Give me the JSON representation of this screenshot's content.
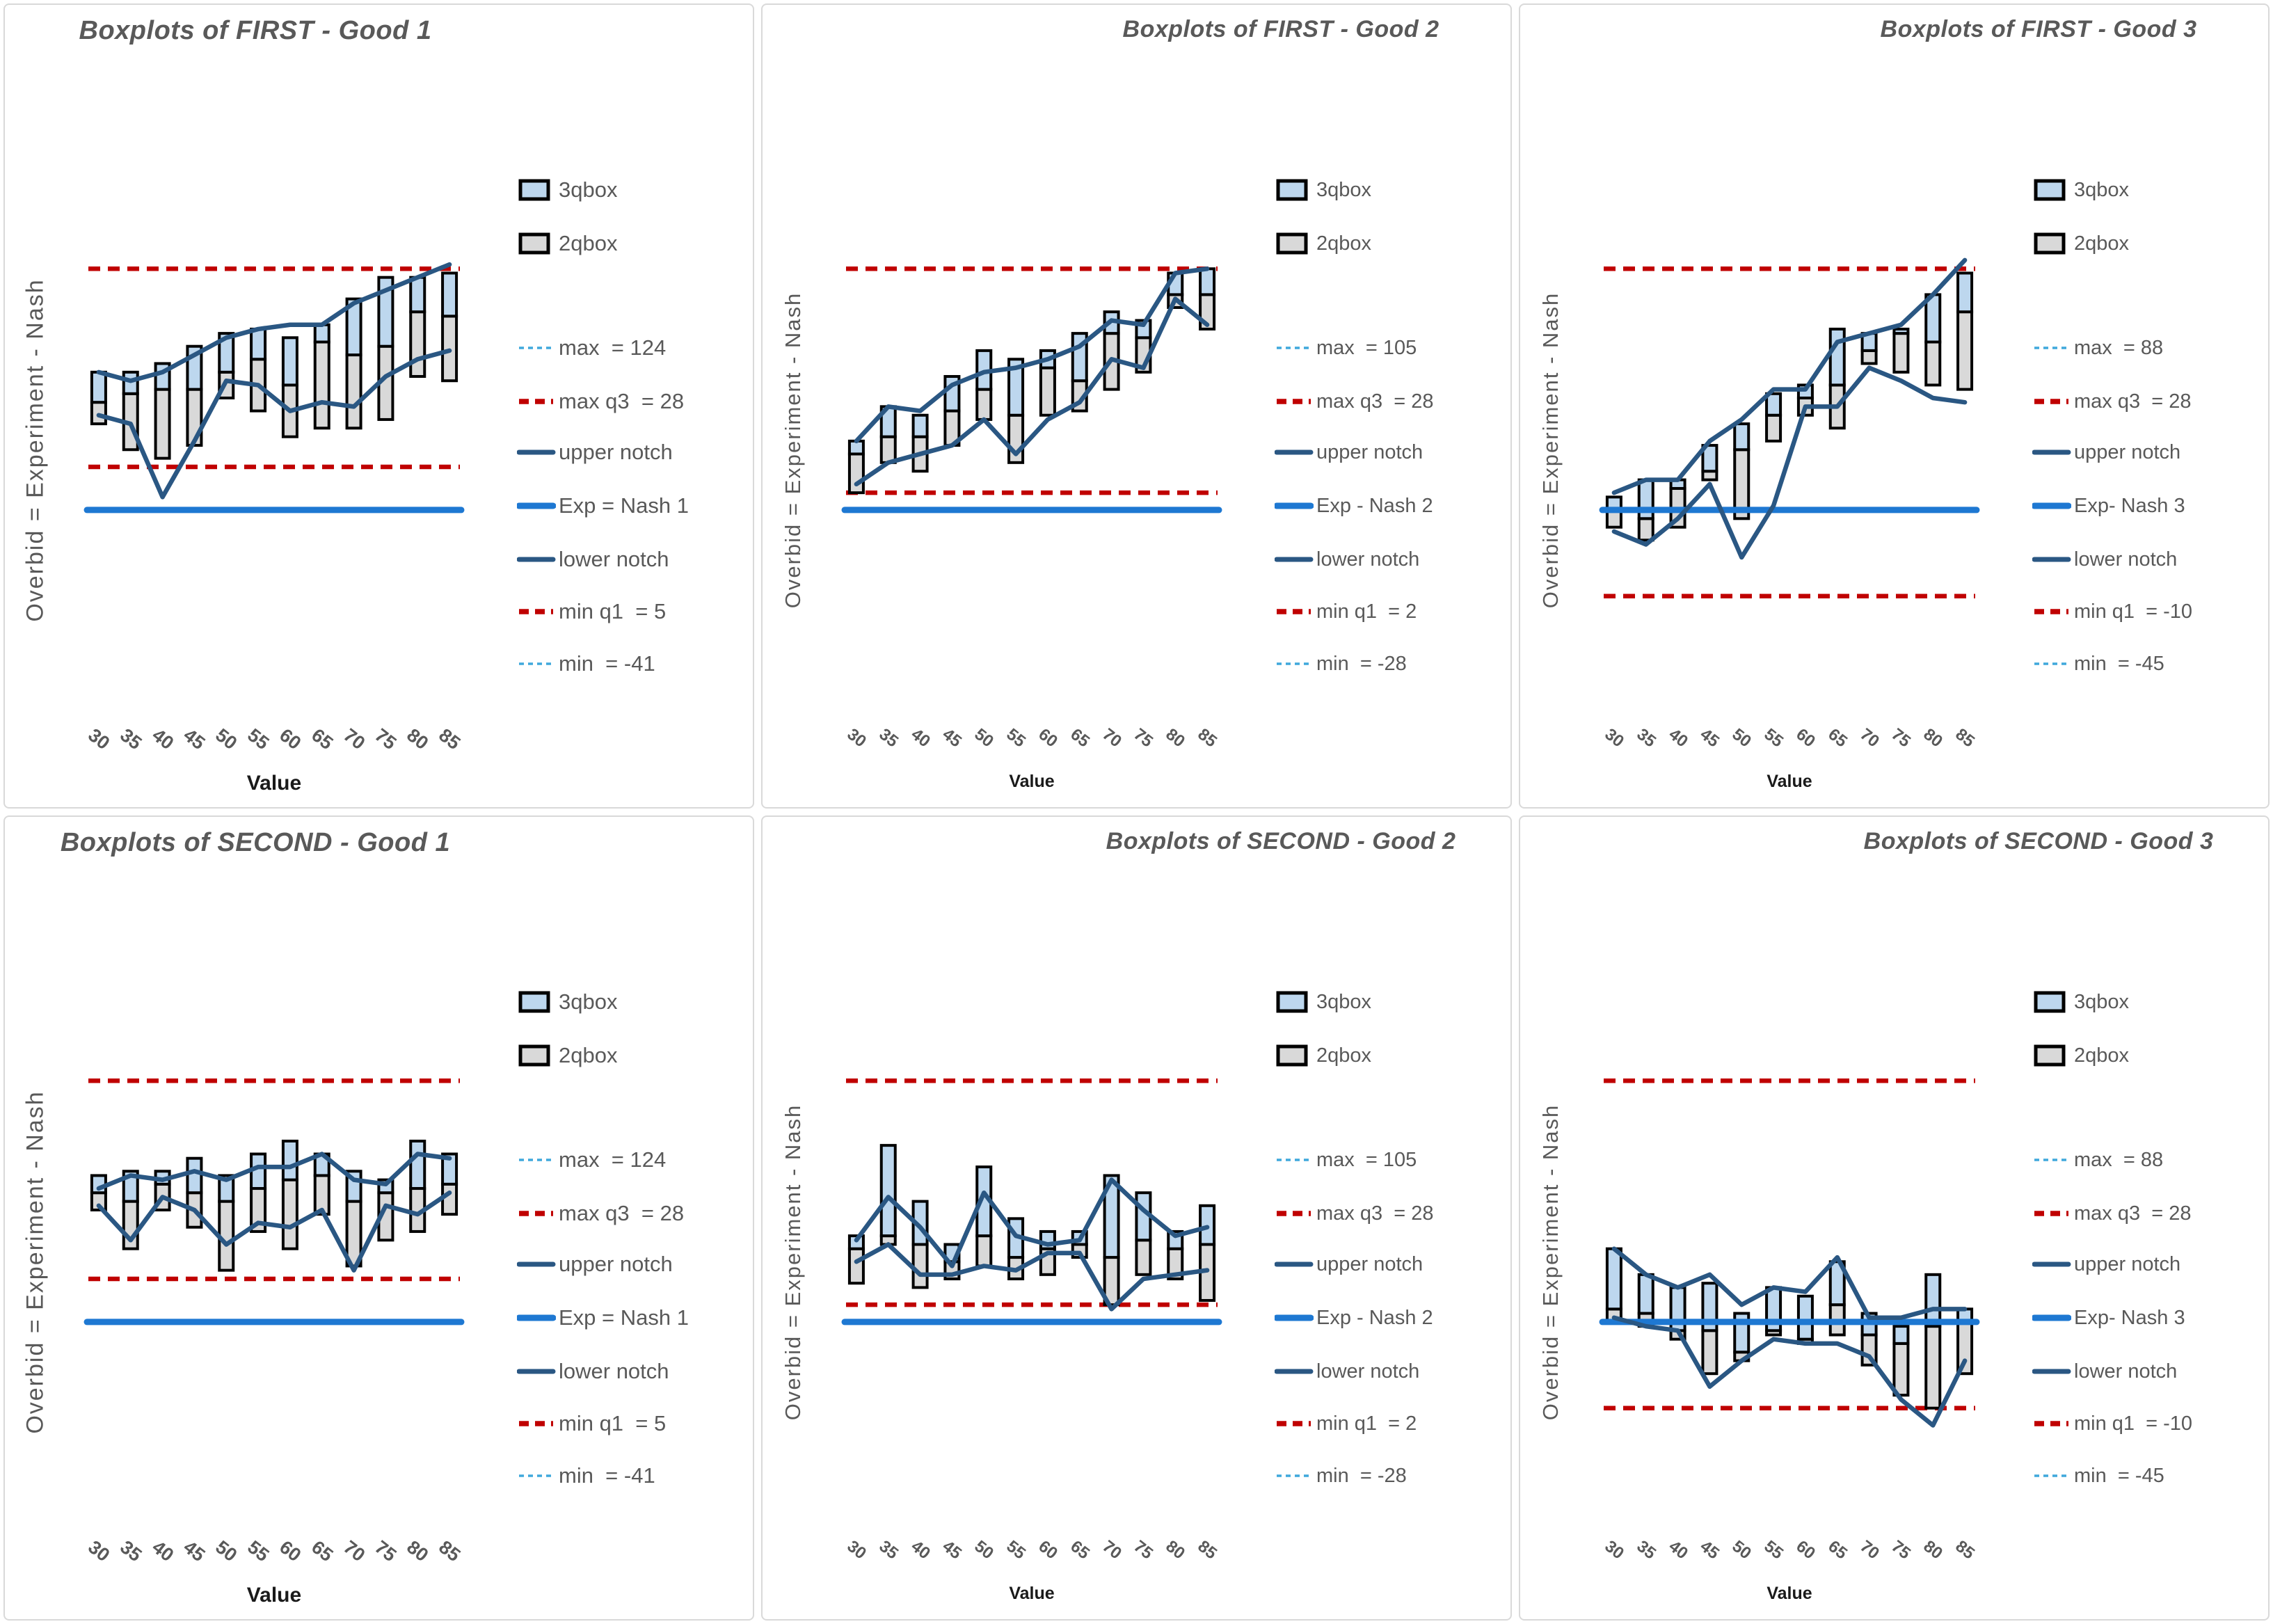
{
  "y_axis_label": "Overbid = Experiment - Nash",
  "x_axis_label": "Value",
  "x_categories": [
    "30",
    "35",
    "40",
    "45",
    "50",
    "55",
    "60",
    "65",
    "70",
    "75",
    "80",
    "85"
  ],
  "colors": {
    "box_3q_fill": "#BDD7EE",
    "box_2q_fill": "#D9D9D9",
    "box_border": "#000000",
    "notch_line": "#2A5783",
    "exp_nash_line": "#1E78D2",
    "ref_red_dashed": "#C00000",
    "ref_lightblue_dashed": "#3FA8DC",
    "text_gray": "#595959",
    "panel_border": "#D9D9D9"
  },
  "chart_data": [
    {
      "type": "boxplot",
      "title": "Boxplots of FIRST - Good 1",
      "xlabel": "Value",
      "ylabel": "Overbid = Experiment - Nash",
      "x": [
        30,
        35,
        40,
        45,
        50,
        55,
        60,
        65,
        70,
        75,
        80,
        85
      ],
      "ylim_hint": [
        -22,
        48
      ],
      "refs": {
        "max": 124,
        "max_q3": 28,
        "min_q1": 5,
        "min": -41,
        "exp_nash": 0
      },
      "series": {
        "q3": [
          16,
          16,
          17,
          19,
          20.5,
          21,
          20,
          21.5,
          24.5,
          27,
          27,
          27.5
        ],
        "median": [
          12.5,
          13.5,
          14,
          14,
          16,
          17.5,
          14.5,
          19.5,
          18,
          19,
          23,
          22.5
        ],
        "q1": [
          10,
          7,
          6,
          7.5,
          13,
          11.5,
          8.5,
          9.5,
          9.5,
          10.5,
          15.5,
          15
        ],
        "upper_notch": [
          16,
          15,
          16,
          18,
          20,
          21,
          21.5,
          21.5,
          24,
          25.5,
          27,
          28.5
        ],
        "lower_notch": [
          11,
          10,
          1.5,
          8,
          15,
          14.5,
          11.5,
          12.5,
          12,
          15.5,
          17.5,
          18.5
        ]
      },
      "legend": [
        {
          "swatch": "box-blue",
          "label": "3qbox"
        },
        {
          "swatch": "box-gray",
          "label": "2qbox"
        },
        {
          "swatch": "dash-lightblue",
          "label": "max  = 124"
        },
        {
          "swatch": "dash-red",
          "label": "max q3  = 28"
        },
        {
          "swatch": "line-navy",
          "label": "upper notch"
        },
        {
          "swatch": "line-blue",
          "label": "Exp = Nash 1"
        },
        {
          "swatch": "line-navy",
          "label": "lower notch"
        },
        {
          "swatch": "dash-red",
          "label": "min q1  = 5"
        },
        {
          "swatch": "dash-lightblue",
          "label": "min  = -41"
        }
      ]
    },
    {
      "type": "boxplot",
      "title": "Boxplots of FIRST - Good 2",
      "xlabel": "Value",
      "ylabel": "Overbid = Experiment - Nash",
      "x": [
        30,
        35,
        40,
        45,
        50,
        55,
        60,
        65,
        70,
        75,
        80,
        85
      ],
      "ylim_hint": [
        -22,
        48
      ],
      "refs": {
        "max": 105,
        "max_q3": 28,
        "min_q1": 2,
        "min": -28,
        "exp_nash": 0
      },
      "series": {
        "q3": [
          8,
          12,
          11,
          15.5,
          18.5,
          17.5,
          18.5,
          20.5,
          23,
          22,
          27.5,
          28
        ],
        "median": [
          6.5,
          8.5,
          8.5,
          11.5,
          14,
          11,
          16.5,
          15,
          20.5,
          20,
          25,
          25
        ],
        "q1": [
          2,
          5.5,
          4.5,
          7.5,
          10.5,
          5.5,
          11,
          11.5,
          14,
          16,
          23.5,
          21
        ],
        "upper_notch": [
          8,
          12,
          11.5,
          14.5,
          16,
          16.5,
          17.5,
          19,
          22,
          21.5,
          27.5,
          28
        ],
        "lower_notch": [
          3,
          5.5,
          6.5,
          7.5,
          10.5,
          6.5,
          10.5,
          12.5,
          17.5,
          16.5,
          24.5,
          21.5
        ]
      },
      "legend": [
        {
          "swatch": "box-blue",
          "label": "3qbox"
        },
        {
          "swatch": "box-gray",
          "label": "2qbox"
        },
        {
          "swatch": "dash-lightblue",
          "label": "max  = 105"
        },
        {
          "swatch": "dash-red",
          "label": "max q3  = 28"
        },
        {
          "swatch": "line-navy",
          "label": "upper notch"
        },
        {
          "swatch": "line-blue",
          "label": "Exp - Nash 2"
        },
        {
          "swatch": "line-navy",
          "label": "lower notch"
        },
        {
          "swatch": "dash-red",
          "label": "min q1  = 2"
        },
        {
          "swatch": "dash-lightblue",
          "label": "min  = -28"
        }
      ]
    },
    {
      "type": "boxplot",
      "title": "Boxplots of FIRST - Good 3",
      "xlabel": "Value",
      "ylabel": "Overbid = Experiment - Nash",
      "x": [
        30,
        35,
        40,
        45,
        50,
        55,
        60,
        65,
        70,
        75,
        80,
        85
      ],
      "ylim_hint": [
        -22,
        48
      ],
      "refs": {
        "max": 88,
        "max_q3": 28,
        "min_q1": -10,
        "min": -45,
        "exp_nash": 0
      },
      "series": {
        "q3": [
          1.5,
          3.5,
          3.5,
          7.5,
          10,
          13.5,
          14.5,
          21,
          20.5,
          21,
          25,
          27.5
        ],
        "median": [
          0,
          -1,
          2.5,
          4.5,
          7,
          11,
          13,
          14.5,
          18.5,
          20.5,
          19.5,
          23
        ],
        "q1": [
          -2,
          -3.5,
          -2,
          3.5,
          -1,
          8,
          11,
          9.5,
          17,
          16,
          14.5,
          14
        ],
        "upper_notch": [
          2,
          3.5,
          3.5,
          8,
          10.5,
          14,
          14,
          19.5,
          20.5,
          21.5,
          25,
          29
        ],
        "lower_notch": [
          -2.5,
          -4,
          -1,
          3,
          -5.5,
          0.5,
          12,
          12,
          16.5,
          15,
          13,
          12.5
        ]
      },
      "legend": [
        {
          "swatch": "box-blue",
          "label": "3qbox"
        },
        {
          "swatch": "box-gray",
          "label": "2qbox"
        },
        {
          "swatch": "dash-lightblue",
          "label": "max  = 88"
        },
        {
          "swatch": "dash-red",
          "label": "max q3  = 28"
        },
        {
          "swatch": "line-navy",
          "label": "upper notch"
        },
        {
          "swatch": "line-blue",
          "label": "Exp- Nash 3"
        },
        {
          "swatch": "line-navy",
          "label": "lower notch"
        },
        {
          "swatch": "dash-red",
          "label": "min q1  = -10"
        },
        {
          "swatch": "dash-lightblue",
          "label": "min  = -45"
        }
      ]
    },
    {
      "type": "boxplot",
      "title": "Boxplots of SECOND - Good 1",
      "xlabel": "Value",
      "ylabel": "Overbid = Experiment - Nash",
      "x": [
        30,
        35,
        40,
        45,
        50,
        55,
        60,
        65,
        70,
        75,
        80,
        85
      ],
      "ylim_hint": [
        -22,
        48
      ],
      "refs": {
        "max": 124,
        "max_q3": 28,
        "min_q1": 5,
        "min": -41,
        "exp_nash": 0
      },
      "series": {
        "q3": [
          17,
          17.5,
          17.5,
          19,
          17,
          19.5,
          21,
          19.5,
          17.5,
          16.5,
          21,
          19.5
        ],
        "median": [
          15,
          14,
          16,
          15,
          14,
          15.5,
          16.5,
          17,
          14,
          15,
          15.5,
          16
        ],
        "q1": [
          13,
          8.5,
          13,
          11,
          6,
          10.5,
          8.5,
          12.5,
          6.5,
          9.5,
          10.5,
          12.5
        ],
        "upper_notch": [
          15.5,
          17,
          16.5,
          17.5,
          16.5,
          18,
          18,
          19.5,
          16.5,
          16,
          19.5,
          19
        ],
        "lower_notch": [
          13.5,
          9.5,
          14.5,
          13,
          9,
          11.5,
          11,
          13,
          6,
          13.5,
          12.5,
          15
        ]
      },
      "legend": [
        {
          "swatch": "box-blue",
          "label": "3qbox"
        },
        {
          "swatch": "box-gray",
          "label": "2qbox"
        },
        {
          "swatch": "dash-lightblue",
          "label": "max  = 124"
        },
        {
          "swatch": "dash-red",
          "label": "max q3  = 28"
        },
        {
          "swatch": "line-navy",
          "label": "upper notch"
        },
        {
          "swatch": "line-blue",
          "label": "Exp = Nash 1"
        },
        {
          "swatch": "line-navy",
          "label": "lower notch"
        },
        {
          "swatch": "dash-red",
          "label": "min q1  = 5"
        },
        {
          "swatch": "dash-lightblue",
          "label": "min  = -41"
        }
      ]
    },
    {
      "type": "boxplot",
      "title": "Boxplots of SECOND - Good 2",
      "xlabel": "Value",
      "ylabel": "Overbid = Experiment - Nash",
      "x": [
        30,
        35,
        40,
        45,
        50,
        55,
        60,
        65,
        70,
        75,
        80,
        85
      ],
      "ylim_hint": [
        -22,
        48
      ],
      "refs": {
        "max": 105,
        "max_q3": 28,
        "min_q1": 2,
        "min": -28,
        "exp_nash": 0
      },
      "series": {
        "q3": [
          10,
          20.5,
          14,
          9,
          18,
          12,
          10.5,
          10.5,
          17,
          15,
          10.5,
          13.5
        ],
        "median": [
          8.5,
          10,
          9,
          7,
          10,
          7.5,
          8.5,
          9,
          7.5,
          9.5,
          8.5,
          9
        ],
        "q1": [
          4.5,
          9,
          4,
          5,
          6.5,
          5,
          5.5,
          7.5,
          2,
          5.5,
          5,
          2.5
        ],
        "upper_notch": [
          9.5,
          14.5,
          11,
          6.5,
          15,
          10,
          9,
          9.5,
          16.5,
          13,
          10,
          11
        ],
        "lower_notch": [
          7,
          9,
          5.5,
          5.5,
          6.5,
          6,
          8,
          8,
          1.5,
          5,
          5.5,
          6
        ]
      },
      "legend": [
        {
          "swatch": "box-blue",
          "label": "3qbox"
        },
        {
          "swatch": "box-gray",
          "label": "2qbox"
        },
        {
          "swatch": "dash-lightblue",
          "label": "max  = 105"
        },
        {
          "swatch": "dash-red",
          "label": "max q3  = 28"
        },
        {
          "swatch": "line-navy",
          "label": "upper notch"
        },
        {
          "swatch": "line-blue",
          "label": "Exp - Nash 2"
        },
        {
          "swatch": "line-navy",
          "label": "lower notch"
        },
        {
          "swatch": "dash-red",
          "label": "min q1  = 2"
        },
        {
          "swatch": "dash-lightblue",
          "label": "min  = -28"
        }
      ]
    },
    {
      "type": "boxplot",
      "title": "Boxplots of SECOND - Good 3",
      "xlabel": "Value",
      "ylabel": "Overbid = Experiment - Nash",
      "x": [
        30,
        35,
        40,
        45,
        50,
        55,
        60,
        65,
        70,
        75,
        80,
        85
      ],
      "ylim_hint": [
        -22,
        48
      ],
      "refs": {
        "max": 88,
        "max_q3": 28,
        "min_q1": -10,
        "min": -45,
        "exp_nash": 0
      },
      "series": {
        "q3": [
          8.5,
          5.5,
          4,
          4.5,
          1,
          4,
          3,
          7,
          1,
          -0.5,
          5.5,
          1.5
        ],
        "median": [
          1.5,
          1,
          -1,
          -1,
          -3.5,
          -1,
          -2,
          2,
          -1.5,
          -2.5,
          -0.5,
          0
        ],
        "q1": [
          0,
          -0.5,
          -2,
          -6,
          -4.5,
          -1.5,
          -2.5,
          -1.5,
          -5,
          -8.5,
          -10,
          -6
        ],
        "upper_notch": [
          8.5,
          5.5,
          4,
          5.5,
          2,
          4,
          3.5,
          7.5,
          0.5,
          0.5,
          1.5,
          1.5
        ],
        "lower_notch": [
          0.5,
          -0.5,
          -1,
          -7.5,
          -4.5,
          -2,
          -2.5,
          -2.5,
          -4,
          -9,
          -12,
          -4.5
        ]
      },
      "legend": [
        {
          "swatch": "box-blue",
          "label": "3qbox"
        },
        {
          "swatch": "box-gray",
          "label": "2qbox"
        },
        {
          "swatch": "dash-lightblue",
          "label": "max  = 88"
        },
        {
          "swatch": "dash-red",
          "label": "max q3  = 28"
        },
        {
          "swatch": "line-navy",
          "label": "upper notch"
        },
        {
          "swatch": "line-blue",
          "label": "Exp- Nash 3"
        },
        {
          "swatch": "line-navy",
          "label": "lower notch"
        },
        {
          "swatch": "dash-red",
          "label": "min q1  = -10"
        },
        {
          "swatch": "dash-lightblue",
          "label": "min  = -45"
        }
      ]
    }
  ]
}
